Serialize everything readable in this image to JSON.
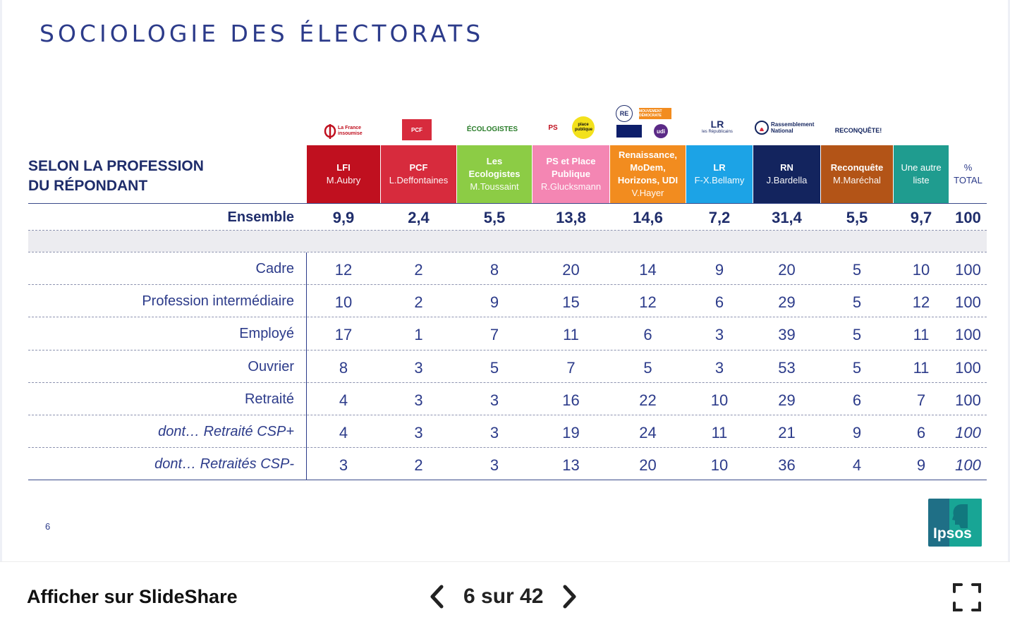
{
  "slide": {
    "title": "SOCIOLOGIE DES ÉLECTORATS",
    "section_label_line1": "SELON LA PROFESSION",
    "section_label_line2": "DU RÉPONDANT",
    "page_number": "6",
    "brand": "Ipsos"
  },
  "logos": {
    "lfi": "La France insoumise",
    "pcf": "PCF",
    "eco": "ÉCOLOGISTES",
    "ps": "PS",
    "pp": "place publique",
    "re": "RE",
    "modem": "MOUVEMENT DÉMOCRATE",
    "udi": "udi",
    "lr_mark": "LR",
    "lr_text": "les Républicains",
    "rn": "Rassemblement National",
    "rec": "RECONQUÊTE!"
  },
  "parties": [
    {
      "name": "LFI",
      "candidate": "M.Aubry",
      "color": "#c0101f"
    },
    {
      "name": "PCF",
      "candidate": "L.Deffontaines",
      "color": "#d72b3d"
    },
    {
      "name": "Les Ecologistes",
      "candidate": "M.Toussaint",
      "color": "#8ccc45"
    },
    {
      "name": "PS et Place Publique",
      "candidate": "R.Glucksmann",
      "color": "#f486b3"
    },
    {
      "name": "Renaissance, MoDem, Horizons, UDI",
      "candidate": "V.Hayer",
      "color": "#f28c1f"
    },
    {
      "name": "LR",
      "candidate": "F-X.Bellamy",
      "color": "#1ca3e6"
    },
    {
      "name": "RN",
      "candidate": "J.Bardella",
      "color": "#13245e"
    },
    {
      "name": "Reconquête",
      "candidate": "M.Maréchal",
      "color": "#b35417"
    },
    {
      "name": "Une autre liste",
      "candidate": "",
      "color": "#1f9c8f"
    }
  ],
  "total_header": {
    "line1": "%",
    "line2": "TOTAL"
  },
  "ensemble": {
    "label": "Ensemble",
    "values": [
      "9,9",
      "2,4",
      "5,5",
      "13,8",
      "14,6",
      "7,2",
      "31,4",
      "5,5",
      "9,7",
      "100"
    ]
  },
  "rows": [
    {
      "label": "Cadre",
      "italic": false,
      "values": [
        "12",
        "2",
        "8",
        "20",
        "14",
        "9",
        "20",
        "5",
        "10",
        "100"
      ]
    },
    {
      "label": "Profession intermédiaire",
      "italic": false,
      "values": [
        "10",
        "2",
        "9",
        "15",
        "12",
        "6",
        "29",
        "5",
        "12",
        "100"
      ]
    },
    {
      "label": "Employé",
      "italic": false,
      "values": [
        "17",
        "1",
        "7",
        "11",
        "6",
        "3",
        "39",
        "5",
        "11",
        "100"
      ]
    },
    {
      "label": "Ouvrier",
      "italic": false,
      "values": [
        "8",
        "3",
        "5",
        "7",
        "5",
        "3",
        "53",
        "5",
        "11",
        "100"
      ]
    },
    {
      "label": "Retraité",
      "italic": false,
      "values": [
        "4",
        "3",
        "3",
        "16",
        "22",
        "10",
        "29",
        "6",
        "7",
        "100"
      ]
    },
    {
      "label": "dont… Retraité CSP+",
      "italic": true,
      "values": [
        "4",
        "3",
        "3",
        "19",
        "24",
        "11",
        "21",
        "9",
        "6",
        "100"
      ]
    },
    {
      "label": "dont… Retraités CSP-",
      "italic": true,
      "values": [
        "3",
        "2",
        "3",
        "13",
        "20",
        "10",
        "36",
        "4",
        "9",
        "100"
      ]
    }
  ],
  "footer": {
    "link_label": "Afficher sur SlideShare",
    "current_page": "6",
    "page_separator": "sur",
    "total_pages": "42",
    "page_text": "6 sur 42",
    "prev_icon": "chevron-left-icon",
    "next_icon": "chevron-right-icon",
    "fullscreen_icon": "fullscreen-icon"
  }
}
